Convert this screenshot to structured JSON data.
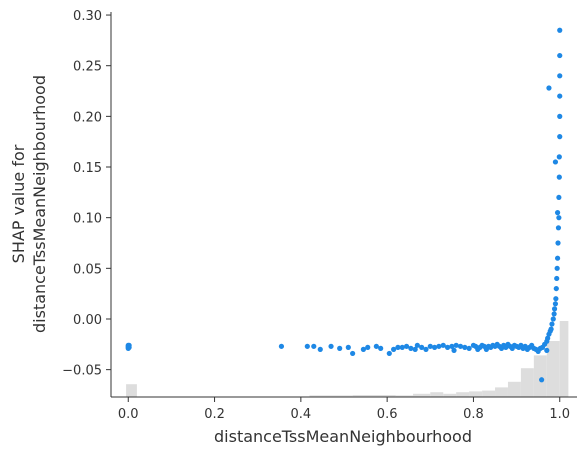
{
  "chart_data": {
    "type": "scatter",
    "title": "",
    "xlabel": "distanceTssMeanNeighbourhood",
    "ylabel_lines": [
      "SHAP value for",
      "distanceTssMeanNeighbourhood"
    ],
    "xlim": [
      -0.04,
      1.04
    ],
    "ylim": [
      -0.077,
      0.303
    ],
    "x_ticks": [
      0.0,
      0.2,
      0.4,
      0.6,
      0.8,
      1.0
    ],
    "x_tick_labels": [
      "0.0",
      "0.2",
      "0.4",
      "0.6",
      "0.8",
      "1.0"
    ],
    "y_ticks": [
      -0.05,
      0.0,
      0.05,
      0.1,
      0.15,
      0.2,
      0.25,
      0.3
    ],
    "y_tick_labels": [
      "−0.05",
      "0.00",
      "0.05",
      "0.10",
      "0.15",
      "0.20",
      "0.25",
      "0.30"
    ],
    "grid": false,
    "point_color": "#1e88e5",
    "histogram_color": "#dddddd",
    "histogram": {
      "note": "background distribution of feature values; heights are relative (0-1)",
      "bins": [
        {
          "x0": -0.005,
          "x1": 0.02,
          "h": 0.16
        },
        {
          "x0": 0.42,
          "x1": 0.52,
          "h": 0.02
        },
        {
          "x0": 0.52,
          "x1": 0.62,
          "h": 0.025
        },
        {
          "x0": 0.62,
          "x1": 0.66,
          "h": 0.02
        },
        {
          "x0": 0.66,
          "x1": 0.7,
          "h": 0.04
        },
        {
          "x0": 0.7,
          "x1": 0.73,
          "h": 0.06
        },
        {
          "x0": 0.73,
          "x1": 0.76,
          "h": 0.04
        },
        {
          "x0": 0.76,
          "x1": 0.79,
          "h": 0.06
        },
        {
          "x0": 0.79,
          "x1": 0.82,
          "h": 0.07
        },
        {
          "x0": 0.82,
          "x1": 0.85,
          "h": 0.08
        },
        {
          "x0": 0.85,
          "x1": 0.88,
          "h": 0.12
        },
        {
          "x0": 0.88,
          "x1": 0.91,
          "h": 0.19
        },
        {
          "x0": 0.91,
          "x1": 0.94,
          "h": 0.36
        },
        {
          "x0": 0.94,
          "x1": 0.97,
          "h": 0.52
        },
        {
          "x0": 0.97,
          "x1": 1.0,
          "h": 0.7
        },
        {
          "x0": 1.0,
          "x1": 1.02,
          "h": 0.95
        }
      ]
    },
    "points": [
      [
        0.0,
        -0.026
      ],
      [
        0.0,
        -0.027
      ],
      [
        0.0,
        -0.028
      ],
      [
        0.0,
        -0.029
      ],
      [
        0.002,
        -0.026
      ],
      [
        0.002,
        -0.028
      ],
      [
        0.355,
        -0.027
      ],
      [
        0.415,
        -0.027
      ],
      [
        0.43,
        -0.027
      ],
      [
        0.445,
        -0.03
      ],
      [
        0.47,
        -0.027
      ],
      [
        0.49,
        -0.029
      ],
      [
        0.51,
        -0.028
      ],
      [
        0.52,
        -0.034
      ],
      [
        0.545,
        -0.03
      ],
      [
        0.555,
        -0.028
      ],
      [
        0.575,
        -0.027
      ],
      [
        0.585,
        -0.029
      ],
      [
        0.605,
        -0.034
      ],
      [
        0.615,
        -0.03
      ],
      [
        0.625,
        -0.028
      ],
      [
        0.635,
        -0.028
      ],
      [
        0.645,
        -0.027
      ],
      [
        0.655,
        -0.029
      ],
      [
        0.665,
        -0.03
      ],
      [
        0.67,
        -0.026
      ],
      [
        0.68,
        -0.028
      ],
      [
        0.69,
        -0.03
      ],
      [
        0.7,
        -0.027
      ],
      [
        0.71,
        -0.028
      ],
      [
        0.72,
        -0.027
      ],
      [
        0.73,
        -0.026
      ],
      [
        0.74,
        -0.028
      ],
      [
        0.75,
        -0.027
      ],
      [
        0.755,
        -0.031
      ],
      [
        0.76,
        -0.026
      ],
      [
        0.77,
        -0.027
      ],
      [
        0.78,
        -0.028
      ],
      [
        0.79,
        -0.029
      ],
      [
        0.8,
        -0.026
      ],
      [
        0.805,
        -0.027
      ],
      [
        0.81,
        -0.03
      ],
      [
        0.815,
        -0.028
      ],
      [
        0.82,
        -0.026
      ],
      [
        0.825,
        -0.027
      ],
      [
        0.83,
        -0.03
      ],
      [
        0.835,
        -0.027
      ],
      [
        0.84,
        -0.028
      ],
      [
        0.845,
        -0.026
      ],
      [
        0.85,
        -0.027
      ],
      [
        0.855,
        -0.025
      ],
      [
        0.86,
        -0.027
      ],
      [
        0.865,
        -0.029
      ],
      [
        0.87,
        -0.026
      ],
      [
        0.875,
        -0.028
      ],
      [
        0.88,
        -0.025
      ],
      [
        0.885,
        -0.027
      ],
      [
        0.89,
        -0.029
      ],
      [
        0.895,
        -0.026
      ],
      [
        0.9,
        -0.027
      ],
      [
        0.905,
        -0.028
      ],
      [
        0.91,
        -0.026
      ],
      [
        0.915,
        -0.029
      ],
      [
        0.92,
        -0.027
      ],
      [
        0.925,
        -0.03
      ],
      [
        0.93,
        -0.028
      ],
      [
        0.935,
        -0.026
      ],
      [
        0.94,
        -0.029
      ],
      [
        0.945,
        -0.03
      ],
      [
        0.95,
        -0.032
      ],
      [
        0.955,
        -0.029
      ],
      [
        0.96,
        -0.028
      ],
      [
        0.965,
        -0.025
      ],
      [
        0.97,
        -0.022
      ],
      [
        0.972,
        -0.019
      ],
      [
        0.975,
        -0.015
      ],
      [
        0.958,
        -0.06
      ],
      [
        0.97,
        -0.031
      ],
      [
        0.978,
        -0.012
      ],
      [
        0.98,
        -0.01
      ],
      [
        0.982,
        -0.005
      ],
      [
        0.985,
        0.0
      ],
      [
        0.987,
        0.005
      ],
      [
        0.988,
        0.01
      ],
      [
        0.99,
        0.015
      ],
      [
        0.991,
        0.02
      ],
      [
        0.992,
        0.03
      ],
      [
        0.993,
        0.04
      ],
      [
        0.994,
        0.05
      ],
      [
        0.995,
        0.06
      ],
      [
        0.996,
        0.075
      ],
      [
        0.997,
        0.09
      ],
      [
        0.998,
        0.1
      ],
      [
        0.998,
        0.12
      ],
      [
        0.999,
        0.14
      ],
      [
        0.999,
        0.16
      ],
      [
        1.0,
        0.18
      ],
      [
        1.0,
        0.2
      ],
      [
        1.0,
        0.22
      ],
      [
        1.0,
        0.24
      ],
      [
        1.0,
        0.26
      ],
      [
        1.0,
        0.285
      ],
      [
        0.975,
        0.228
      ],
      [
        0.99,
        0.155
      ],
      [
        0.995,
        0.105
      ]
    ]
  }
}
